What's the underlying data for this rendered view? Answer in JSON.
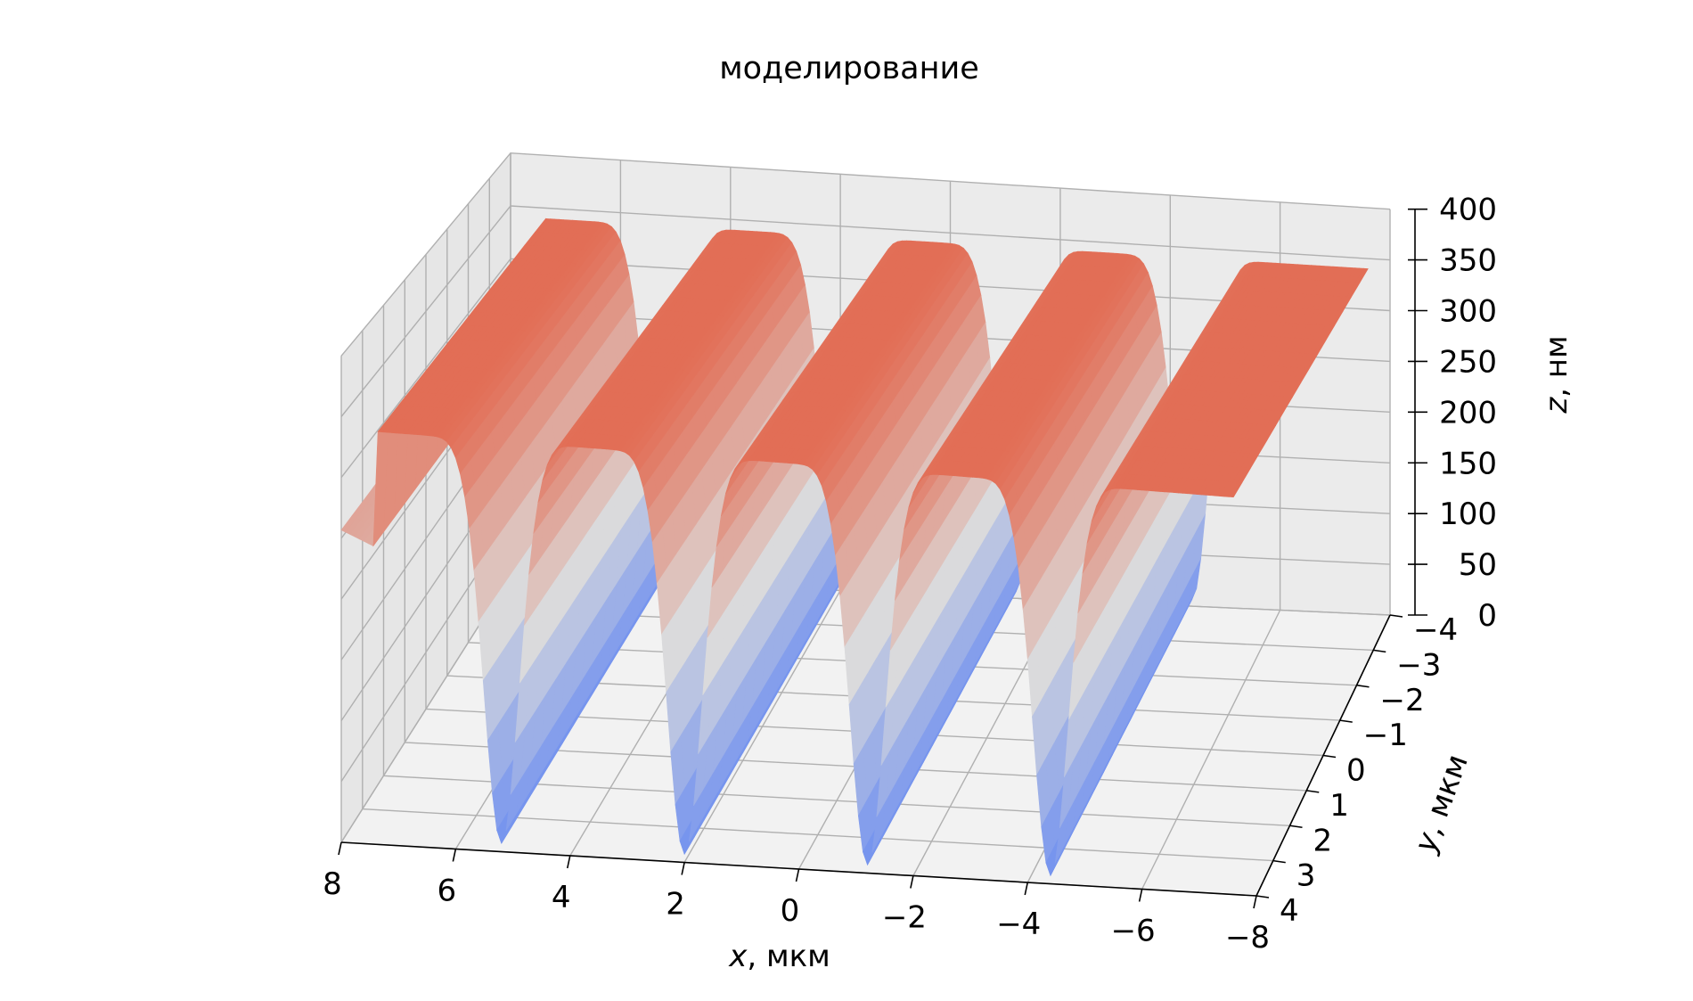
{
  "chart_data": {
    "type": "surface",
    "title": "моделирование",
    "xlabel_var": "x",
    "xlabel_unit": ", мкм",
    "ylabel_var": "y",
    "ylabel_unit": ", мкм",
    "zlabel_var": "z",
    "zlabel_unit": ", нм",
    "x_ticks": [
      "8",
      "6",
      "4",
      "2",
      "0",
      "−2",
      "−4",
      "−6",
      "−8"
    ],
    "x_tick_values": [
      8,
      6,
      4,
      2,
      0,
      -2,
      -4,
      -6,
      -8
    ],
    "y_ticks": [
      "−4",
      "−3",
      "−2",
      "−1",
      "0",
      "1",
      "2",
      "3",
      "4"
    ],
    "y_tick_values": [
      -4,
      -3,
      -2,
      -1,
      0,
      1,
      2,
      3,
      4
    ],
    "z_ticks": [
      "0",
      "50",
      "100",
      "150",
      "200",
      "250",
      "300",
      "350",
      "400"
    ],
    "z_tick_values": [
      0,
      50,
      100,
      150,
      200,
      250,
      300,
      350,
      400
    ],
    "xlim": [
      -8,
      8
    ],
    "ylim": [
      -4,
      4
    ],
    "zlim": [
      0,
      400
    ],
    "colormap": "coolwarm",
    "colors": {
      "low": "#6F8FF0",
      "mid": "#DDDCDB",
      "high": "#E26E56",
      "pane": "#F2F2F2",
      "grid": "#B0B0B0"
    },
    "surface": {
      "description": "periodic grating profile along x, constant along y",
      "period": 3.2,
      "ridge_x_centers": [
        6.8,
        3.6,
        0.4,
        -2.8,
        -6.0
      ],
      "ridge_height": 340,
      "trench_x_centers": [
        5.2,
        2.0,
        -1.2,
        -4.4
      ],
      "trench_depth_min": 0,
      "x_range": [
        -7.6,
        8
      ]
    },
    "grid": true
  }
}
